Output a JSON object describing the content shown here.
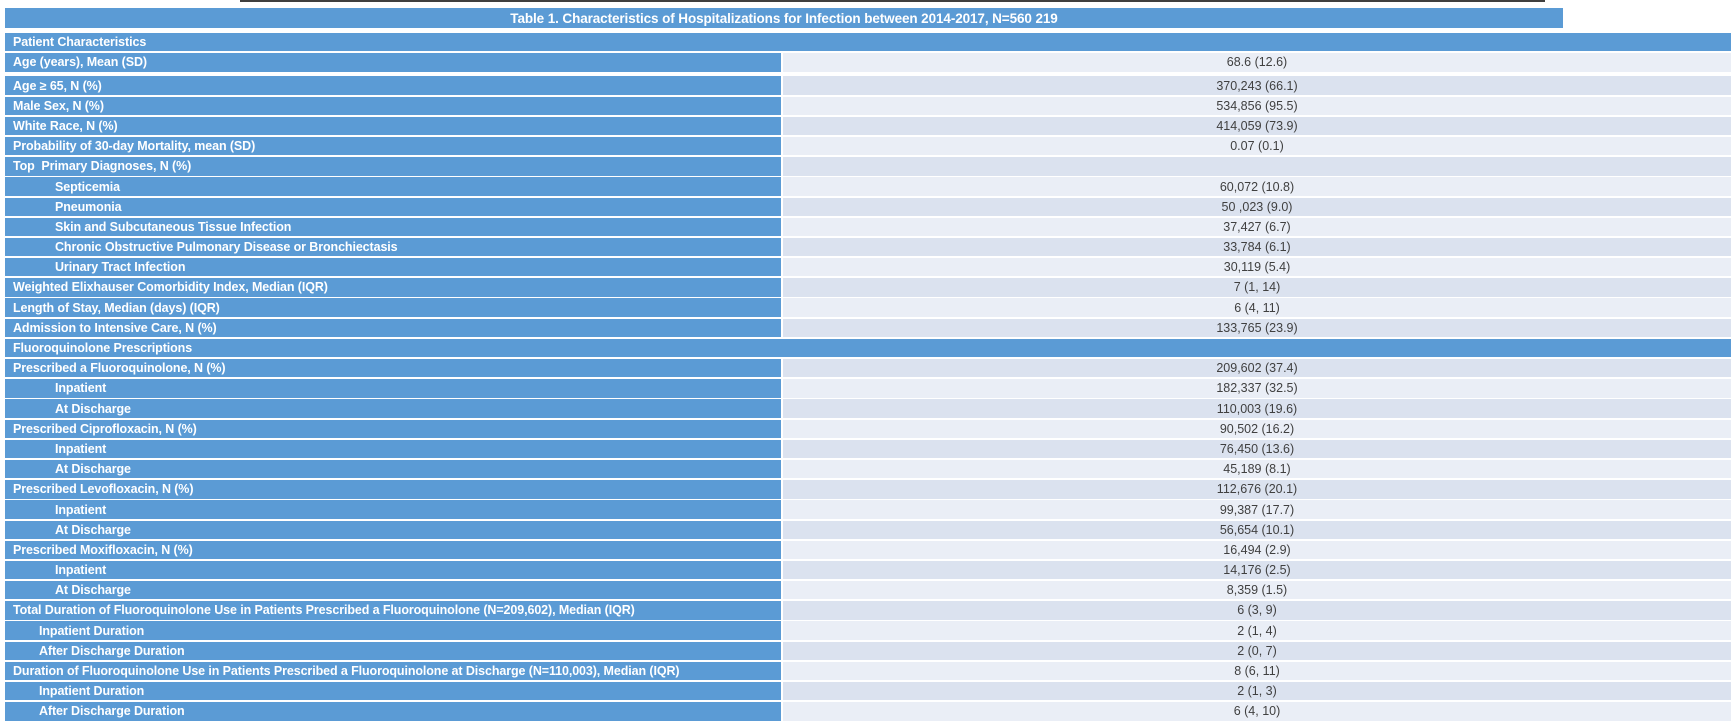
{
  "colors": {
    "header_blue": "#5b9bd5",
    "row_light": "#eaeef6",
    "row_dark": "#dbe2ef",
    "value_text": "#404040",
    "label_text": "#ffffff",
    "top_artifact_line": "#3f3f3f"
  },
  "table": {
    "title": "Table 1. Characteristics of Hospitalizations for Infection between 2014-2017, N=560 219",
    "rows": [
      {
        "type": "section",
        "label": "Patient Characteristics"
      },
      {
        "type": "data",
        "label": "Age (years), Mean (SD)",
        "value": "68.6 (12.6)",
        "indent": 0,
        "shade": "light",
        "extra_gap_after": true
      },
      {
        "type": "data",
        "label": "Age ≥ 65, N (%)",
        "value": "370,243 (66.1)",
        "indent": 0,
        "shade": "dark"
      },
      {
        "type": "data",
        "label": "Male Sex, N (%)",
        "value": "534,856 (95.5)",
        "indent": 0,
        "shade": "light"
      },
      {
        "type": "data",
        "label": "White Race, N (%)",
        "value": "414,059 (73.9)",
        "indent": 0,
        "shade": "dark"
      },
      {
        "type": "data",
        "label": "Probability of 30-day Mortality, mean (SD)",
        "value": "0.07 (0.1)",
        "indent": 0,
        "shade": "light"
      },
      {
        "type": "data",
        "label": "Top  Primary Diagnoses, N (%)",
        "value": "",
        "indent": 0,
        "shade": "dark"
      },
      {
        "type": "data",
        "label": "Septicemia",
        "value": "60,072 (10.8)",
        "indent": 2,
        "shade": "light"
      },
      {
        "type": "data",
        "label": "Pneumonia",
        "value": "50 ,023 (9.0)",
        "indent": 2,
        "shade": "dark"
      },
      {
        "type": "data",
        "label": "Skin and Subcutaneous Tissue Infection",
        "value": "37,427 (6.7)",
        "indent": 2,
        "shade": "light"
      },
      {
        "type": "data",
        "label": "Chronic Obstructive Pulmonary Disease or Bronchiectasis",
        "value": "33,784 (6.1)",
        "indent": 2,
        "shade": "dark"
      },
      {
        "type": "data",
        "label": "Urinary Tract Infection",
        "value": "30,119 (5.4)",
        "indent": 2,
        "shade": "light"
      },
      {
        "type": "data",
        "label": "Weighted Elixhauser Comorbidity Index, Median (IQR)",
        "value": "7 (1, 14)",
        "indent": 0,
        "shade": "dark"
      },
      {
        "type": "data",
        "label": "Length of Stay, Median (days) (IQR)",
        "value": "6 (4, 11)",
        "indent": 0,
        "shade": "light"
      },
      {
        "type": "data",
        "label": "Admission to Intensive Care, N (%)",
        "value": "133,765 (23.9)",
        "indent": 0,
        "shade": "dark"
      },
      {
        "type": "section",
        "label": "Fluoroquinolone Prescriptions"
      },
      {
        "type": "data",
        "label": "Prescribed a Fluoroquinolone, N (%)",
        "value": "209,602 (37.4)",
        "indent": 0,
        "shade": "dark"
      },
      {
        "type": "data",
        "label": "Inpatient",
        "value": "182,337 (32.5)",
        "indent": 2,
        "shade": "light"
      },
      {
        "type": "data",
        "label": "At Discharge",
        "value": "110,003 (19.6)",
        "indent": 2,
        "shade": "dark"
      },
      {
        "type": "data",
        "label": "Prescribed Ciprofloxacin, N (%)",
        "value": "90,502 (16.2)",
        "indent": 0,
        "shade": "light"
      },
      {
        "type": "data",
        "label": "Inpatient",
        "value": "76,450 (13.6)",
        "indent": 2,
        "shade": "dark"
      },
      {
        "type": "data",
        "label": "At Discharge",
        "value": "45,189 (8.1)",
        "indent": 2,
        "shade": "light"
      },
      {
        "type": "data",
        "label": "Prescribed Levofloxacin, N (%)",
        "value": "112,676 (20.1)",
        "indent": 0,
        "shade": "dark"
      },
      {
        "type": "data",
        "label": "Inpatient",
        "value": "99,387 (17.7)",
        "indent": 2,
        "shade": "light"
      },
      {
        "type": "data",
        "label": "At Discharge",
        "value": "56,654 (10.1)",
        "indent": 2,
        "shade": "dark"
      },
      {
        "type": "data",
        "label": "Prescribed Moxifloxacin, N (%)",
        "value": "16,494 (2.9)",
        "indent": 0,
        "shade": "light"
      },
      {
        "type": "data",
        "label": "Inpatient",
        "value": "14,176 (2.5)",
        "indent": 2,
        "shade": "dark"
      },
      {
        "type": "data",
        "label": "At Discharge",
        "value": "8,359 (1.5)",
        "indent": 2,
        "shade": "light"
      },
      {
        "type": "data",
        "label": "Total Duration of Fluoroquinolone Use in Patients Prescribed a Fluoroquinolone (N=209,602), Median (IQR)",
        "value": "6 (3, 9)",
        "indent": 0,
        "shade": "dark"
      },
      {
        "type": "data",
        "label": "Inpatient Duration",
        "value": "2 (1, 4)",
        "indent": 1,
        "shade": "light"
      },
      {
        "type": "data",
        "label": "After Discharge Duration",
        "value": "2 (0, 7)",
        "indent": 1,
        "shade": "dark"
      },
      {
        "type": "data",
        "label": "Duration of Fluoroquinolone Use in Patients Prescribed a Fluoroquinolone at Discharge (N=110,003), Median (IQR)",
        "value": "8 (6, 11)",
        "indent": 0,
        "shade": "light"
      },
      {
        "type": "data",
        "label": "Inpatient Duration",
        "value": "2 (1, 3)",
        "indent": 1,
        "shade": "dark"
      },
      {
        "type": "data",
        "label": "After Discharge Duration",
        "value": "6 (4, 10)",
        "indent": 1,
        "shade": "light"
      }
    ]
  }
}
